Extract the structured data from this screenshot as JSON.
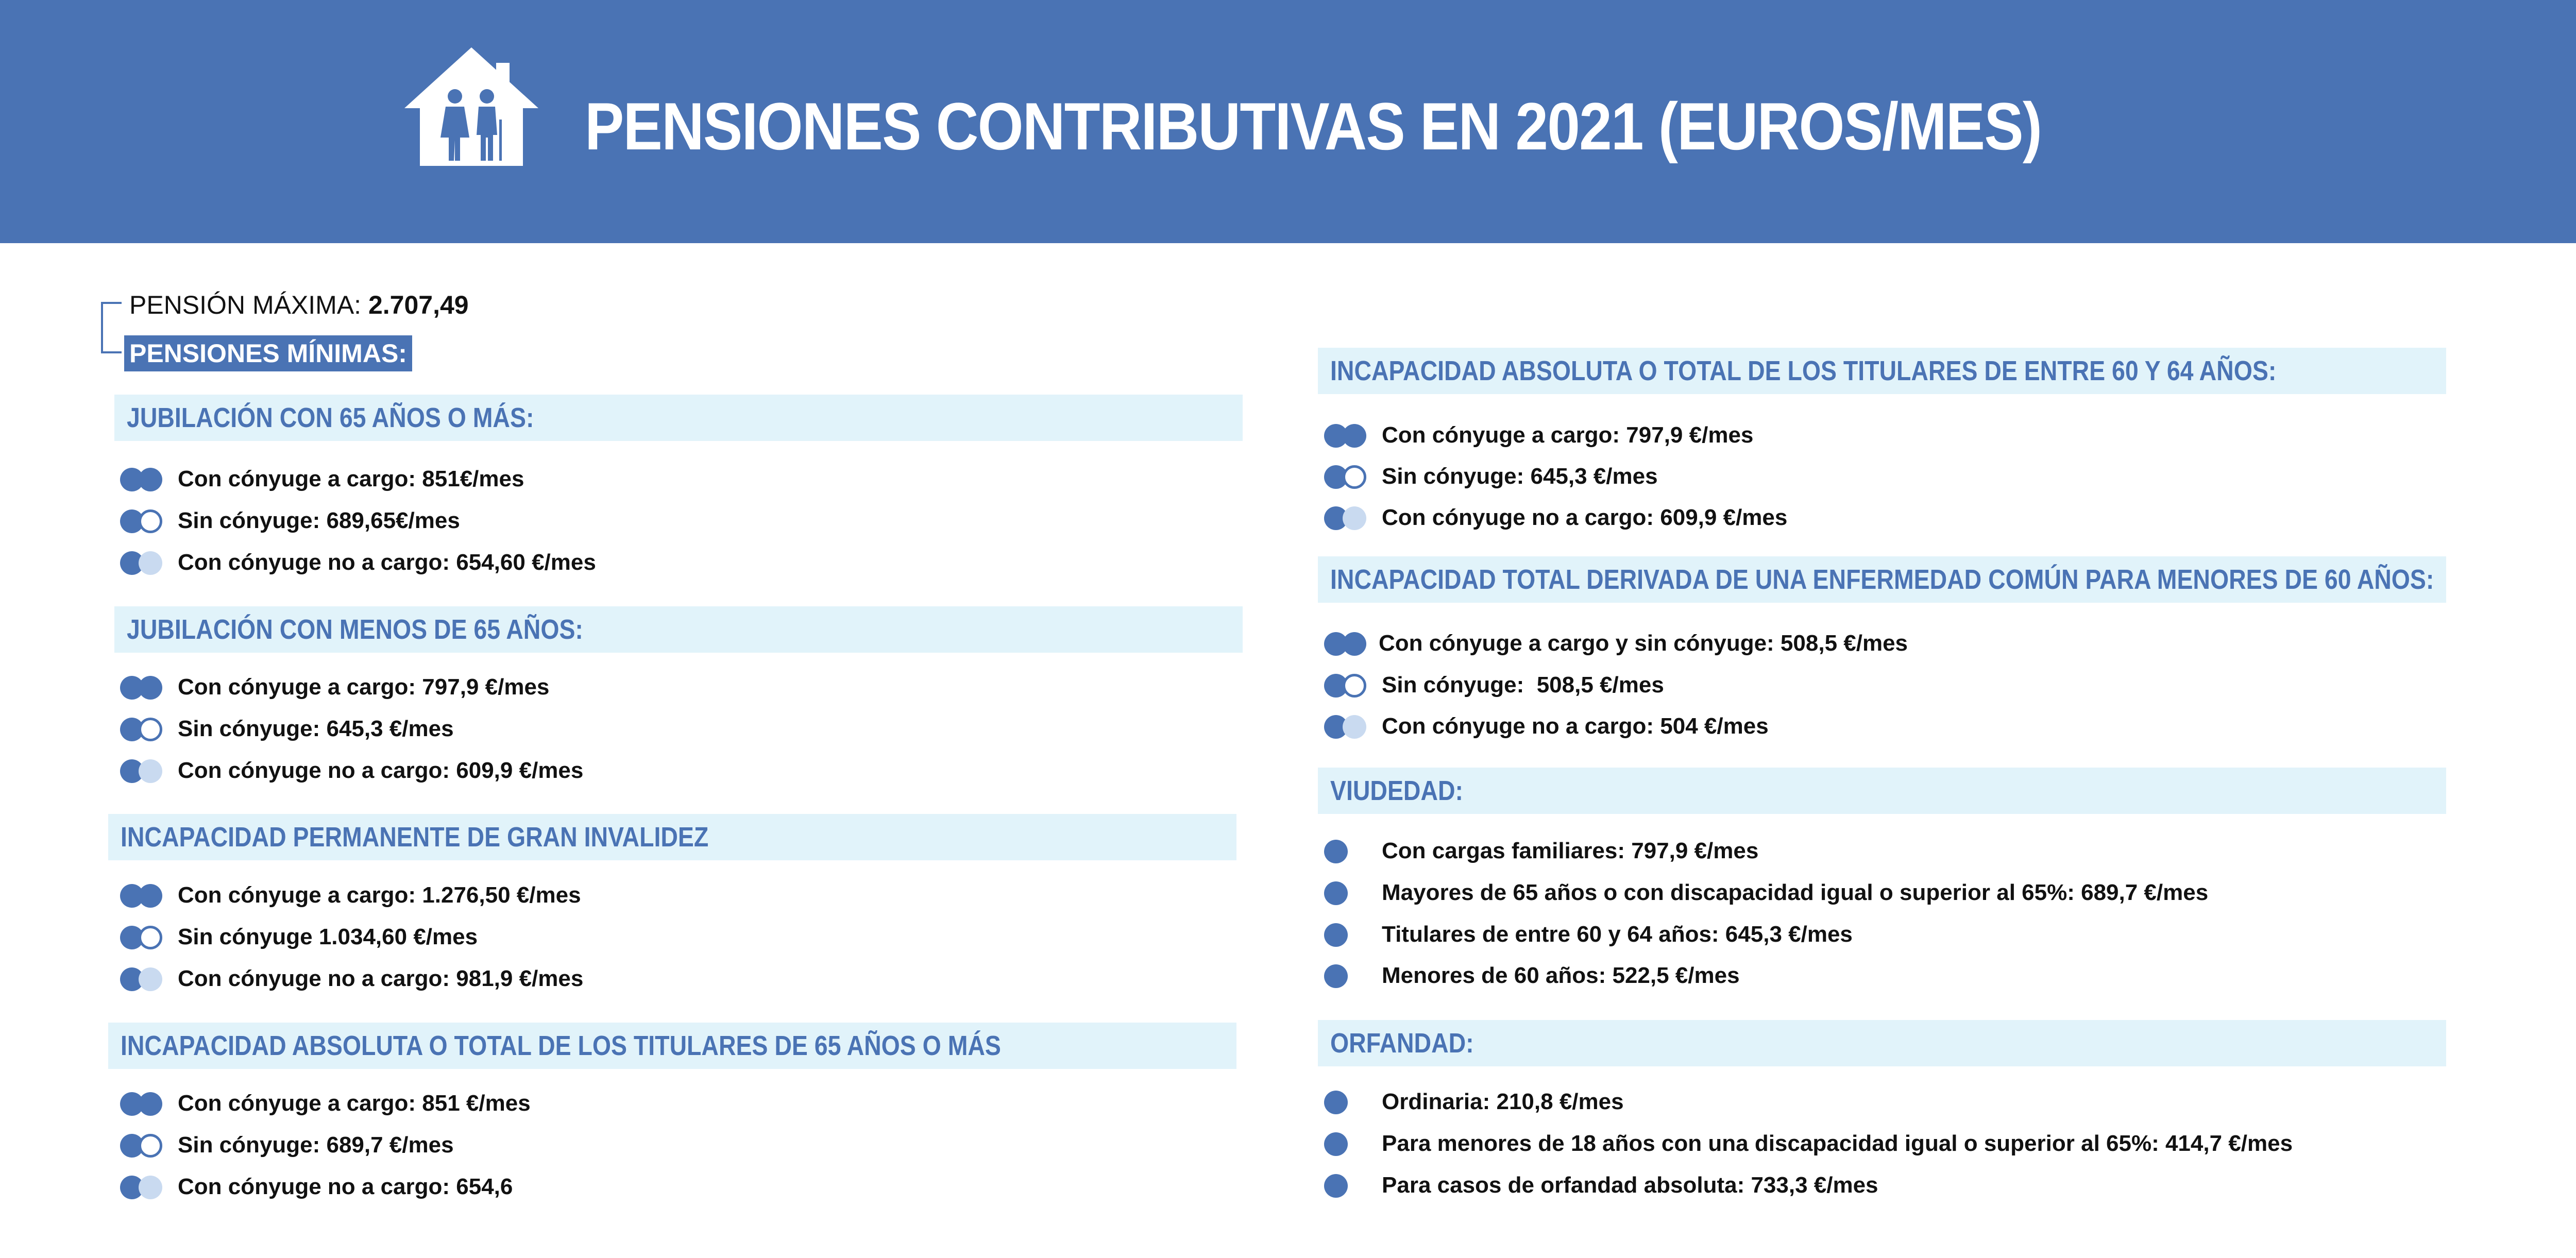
{
  "header": {
    "icon": "house-family-icon",
    "title": "PENSIONES CONTRIBUTIVAS EN 2021 (EUROS/MES)"
  },
  "pension_maxima": {
    "label": "PENSIÓN MÁXIMA:",
    "value": "2.707,49"
  },
  "pensiones_minimas_label": "PENSIONES MÍNIMAS:",
  "colors": {
    "primary": "#4A73B4",
    "section_bg": "#E1F3FA",
    "light_dot": "#C9DAF0"
  },
  "left": {
    "s1": {
      "title": "JUBILACIÓN CON 65 AÑOS O MÁS:",
      "items": [
        "Con cónyuge a cargo: 851€/mes",
        "Sin cónyuge: 689,65€/mes",
        "Con cónyuge no a cargo: 654,60 €/mes"
      ]
    },
    "s2": {
      "title": "JUBILACIÓN CON MENOS DE 65 AÑOS:",
      "items": [
        "Con cónyuge a cargo: 797,9 €/mes",
        "Sin cónyuge: 645,3 €/mes",
        "Con cónyuge no a cargo: 609,9 €/mes"
      ]
    },
    "s3": {
      "title": "INCAPACIDAD PERMANENTE DE GRAN INVALIDEZ",
      "items": [
        "Con cónyuge a cargo: 1.276,50 €/mes",
        "Sin cónyuge 1.034,60 €/mes",
        "Con cónyuge no a cargo: 981,9 €/mes"
      ]
    },
    "s4": {
      "title": "INCAPACIDAD ABSOLUTA O TOTAL DE LOS TITULARES DE 65 AÑOS O MÁS",
      "items": [
        "Con cónyuge a cargo: 851 €/mes",
        "Sin cónyuge: 689,7 €/mes",
        "Con cónyuge no a cargo: 654,6"
      ]
    }
  },
  "right": {
    "s1": {
      "title": "INCAPACIDAD ABSOLUTA O TOTAL DE LOS TITULARES DE ENTRE 60 Y 64 AÑOS:",
      "items": [
        "Con cónyuge a cargo: 797,9 €/mes",
        "Sin cónyuge: 645,3 €/mes",
        "Con cónyuge no a cargo: 609,9 €/mes"
      ]
    },
    "s2": {
      "title": "INCAPACIDAD TOTAL DERIVADA DE UNA ENFERMEDAD COMÚN PARA MENORES DE 60 AÑOS:",
      "items": [
        "Con cónyuge a cargo y sin cónyuge: 508,5 €/mes",
        "Sin cónyuge:  508,5 €/mes",
        "Con cónyuge no a cargo: 504 €/mes"
      ]
    },
    "s3": {
      "title": "VIUDEDAD:",
      "items": [
        "Con cargas familiares: 797,9 €/mes",
        "Mayores de 65 años o con discapacidad igual o superior al 65%: 689,7 €/mes",
        "Titulares de entre 60 y 64 años: 645,3 €/mes",
        "Menores de 60 años: 522,5 €/mes"
      ]
    },
    "s4": {
      "title": "ORFANDAD:",
      "items": [
        "Ordinaria: 210,8 €/mes",
        "Para menores de 18 años con una discapacidad igual o superior al 65%: 414,7 €/mes",
        "Para casos de orfandad absoluta: 733,3 €/mes"
      ]
    }
  }
}
